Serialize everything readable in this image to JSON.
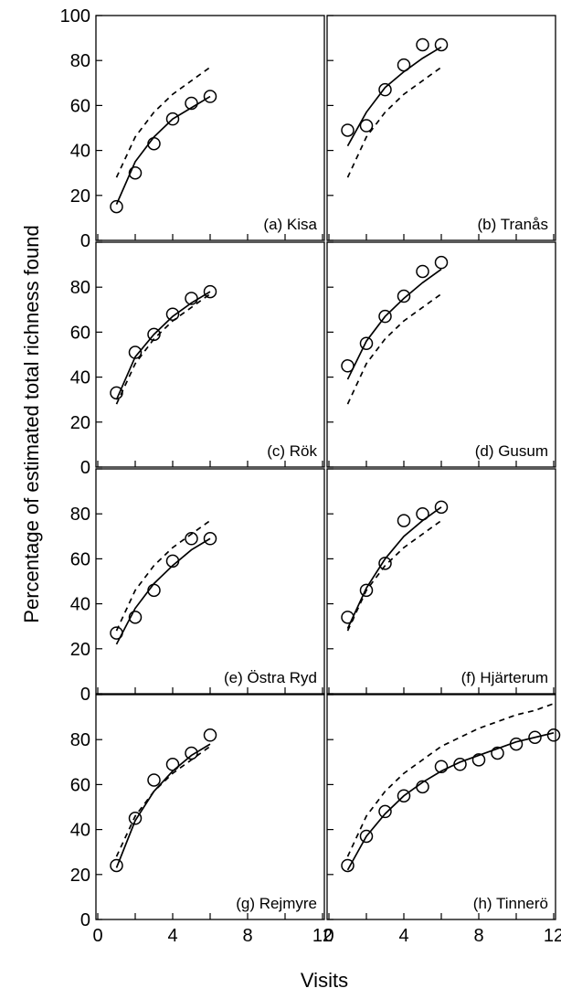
{
  "chart_data": {
    "type": "scatter",
    "xlabel": "Visits",
    "ylabel": "Percentage of estimated total richness found",
    "xlim": [
      0,
      12
    ],
    "ylim": [
      0,
      100
    ],
    "x_ticks": [
      0,
      4,
      8,
      12
    ],
    "y_ticks": [
      0,
      20,
      40,
      60,
      80,
      100
    ],
    "grid": false,
    "layout": "4 rows x 2 columns",
    "line_styles": {
      "fitted": "solid",
      "reference": "dashed"
    },
    "panels": [
      {
        "label": "(a) Kisa",
        "x": [
          1,
          2,
          3,
          4,
          5,
          6
        ],
        "observed": [
          15,
          30,
          43,
          54,
          61,
          64
        ],
        "fitted": [
          16,
          35,
          46,
          54,
          59,
          64
        ],
        "reference": [
          28,
          46,
          57,
          65,
          71,
          77
        ]
      },
      {
        "label": "(b) Tranås",
        "x": [
          1,
          2,
          3,
          4,
          5,
          6
        ],
        "observed": [
          49,
          51,
          67,
          78,
          87,
          87
        ],
        "fitted": [
          42,
          57,
          68,
          75,
          81,
          86
        ],
        "reference": [
          28,
          46,
          57,
          65,
          71,
          77
        ]
      },
      {
        "label": "(c) Rök",
        "x": [
          1,
          2,
          3,
          4,
          5,
          6
        ],
        "observed": [
          33,
          51,
          59,
          68,
          75,
          78
        ],
        "fitted": [
          30,
          49,
          59,
          67,
          73,
          78
        ],
        "reference": [
          28,
          46,
          57,
          65,
          71,
          77
        ]
      },
      {
        "label": "(d) Gusum",
        "x": [
          1,
          2,
          3,
          4,
          5,
          6
        ],
        "observed": [
          45,
          55,
          67,
          76,
          87,
          91
        ],
        "fitted": [
          39,
          56,
          67,
          75,
          82,
          88
        ],
        "reference": [
          28,
          46,
          57,
          65,
          71,
          77
        ]
      },
      {
        "label": "(e) Östra Ryd",
        "x": [
          1,
          2,
          3,
          4,
          5,
          6
        ],
        "observed": [
          27,
          34,
          46,
          59,
          69,
          69
        ],
        "fitted": [
          22,
          38,
          49,
          57,
          64,
          69
        ],
        "reference": [
          28,
          46,
          57,
          65,
          71,
          77
        ]
      },
      {
        "label": "(f) Hjärterum",
        "x": [
          1,
          2,
          3,
          4,
          5,
          6
        ],
        "observed": [
          34,
          46,
          58,
          77,
          80,
          83
        ],
        "fitted": [
          29,
          47,
          60,
          70,
          77,
          83
        ],
        "reference": [
          28,
          46,
          57,
          65,
          71,
          77
        ]
      },
      {
        "label": "(g) Rejmyre",
        "x": [
          1,
          2,
          3,
          4,
          5,
          6
        ],
        "observed": [
          24,
          45,
          62,
          69,
          74,
          82
        ],
        "fitted": [
          23,
          44,
          57,
          66,
          73,
          78
        ],
        "reference": [
          28,
          46,
          57,
          65,
          71,
          77
        ]
      },
      {
        "label": "(h) Tinnerö",
        "x": [
          1,
          2,
          3,
          4,
          5,
          6,
          7,
          8,
          9,
          10,
          11,
          12
        ],
        "observed": [
          24,
          37,
          48,
          55,
          59,
          68,
          69,
          71,
          74,
          78,
          81,
          82
        ],
        "fitted": [
          22,
          37,
          47,
          55,
          61,
          66,
          70,
          73,
          76,
          79,
          81,
          83
        ],
        "reference": [
          28,
          46,
          57,
          65,
          71,
          77,
          81,
          85,
          88,
          91,
          93,
          96
        ]
      }
    ]
  }
}
